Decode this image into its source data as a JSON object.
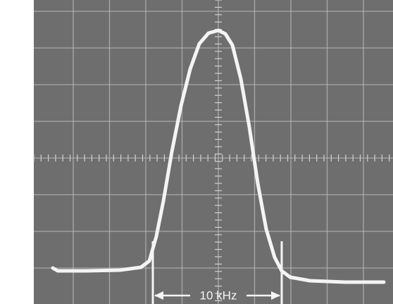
{
  "annotation": "10 kHz"
}
